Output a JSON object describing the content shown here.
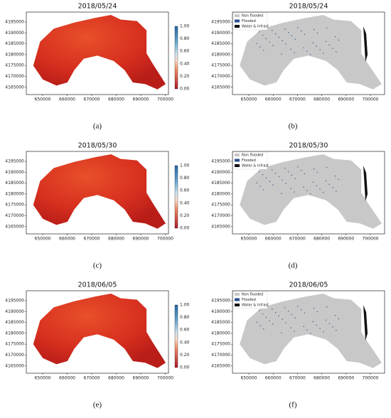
{
  "panels": [
    {
      "title": "2018/05/24",
      "caption": "(a)",
      "yticks": [
        "4195000",
        "4190000",
        "4185000",
        "4180000",
        "4175000",
        "4170000",
        "4165000"
      ],
      "xticks": [
        "650000",
        "660000",
        "670000",
        "680000",
        "690000",
        "700000"
      ],
      "colorbar_ticks": [
        "1.00",
        "0.80",
        "0.60",
        "0.40",
        "0.20",
        "0.00"
      ]
    },
    {
      "title": "2018/05/24",
      "caption": "(b)",
      "yticks": [
        "4195000",
        "4190000",
        "4185000",
        "4180000",
        "4175000",
        "4170000",
        "4165000"
      ],
      "xticks": [
        "650000",
        "660000",
        "670000",
        "680000",
        "690000",
        "700000"
      ],
      "legend": [
        "Non flooded",
        "Flooded",
        "Water & Infrast"
      ]
    },
    {
      "title": "2018/05/30",
      "caption": "(c)",
      "yticks": [
        "4195000",
        "4190000",
        "4185000",
        "4180000",
        "4175000",
        "4170000",
        "4165000"
      ],
      "xticks": [
        "650000",
        "660000",
        "670000",
        "680000",
        "690000",
        "700000"
      ],
      "colorbar_ticks": [
        "1.00",
        "0.80",
        "0.60",
        "0.40",
        "0.20",
        "0.00"
      ]
    },
    {
      "title": "2018/05/30",
      "caption": "(d)",
      "yticks": [
        "4195000",
        "4190000",
        "4185000",
        "4180000",
        "4175000",
        "4170000",
        "4165000"
      ],
      "xticks": [
        "650000",
        "660000",
        "670000",
        "680000",
        "690000",
        "700000"
      ],
      "legend": [
        "Non flooded",
        "Flooded",
        "Water & Infrast"
      ]
    },
    {
      "title": "2018/06/05",
      "caption": "(e)",
      "yticks": [
        "4195000",
        "4190000",
        "4185000",
        "4180000",
        "4175000",
        "4170000",
        "4165000"
      ],
      "xticks": [
        "650000",
        "660000",
        "670000",
        "680000",
        "690000",
        "700000"
      ],
      "colorbar_ticks": [
        "1.00",
        "0.80",
        "0.60",
        "0.40",
        "0.20",
        "0.00"
      ]
    },
    {
      "title": "2018/06/05",
      "caption": "(f)",
      "yticks": [
        "4195000",
        "4190000",
        "4185000",
        "4180000",
        "4175000",
        "4170000",
        "4165000"
      ],
      "xticks": [
        "650000",
        "660000",
        "670000",
        "680000",
        "690000",
        "700000"
      ],
      "legend": [
        "Non flooded",
        "Flooded",
        "Water & Infrast"
      ]
    }
  ]
}
